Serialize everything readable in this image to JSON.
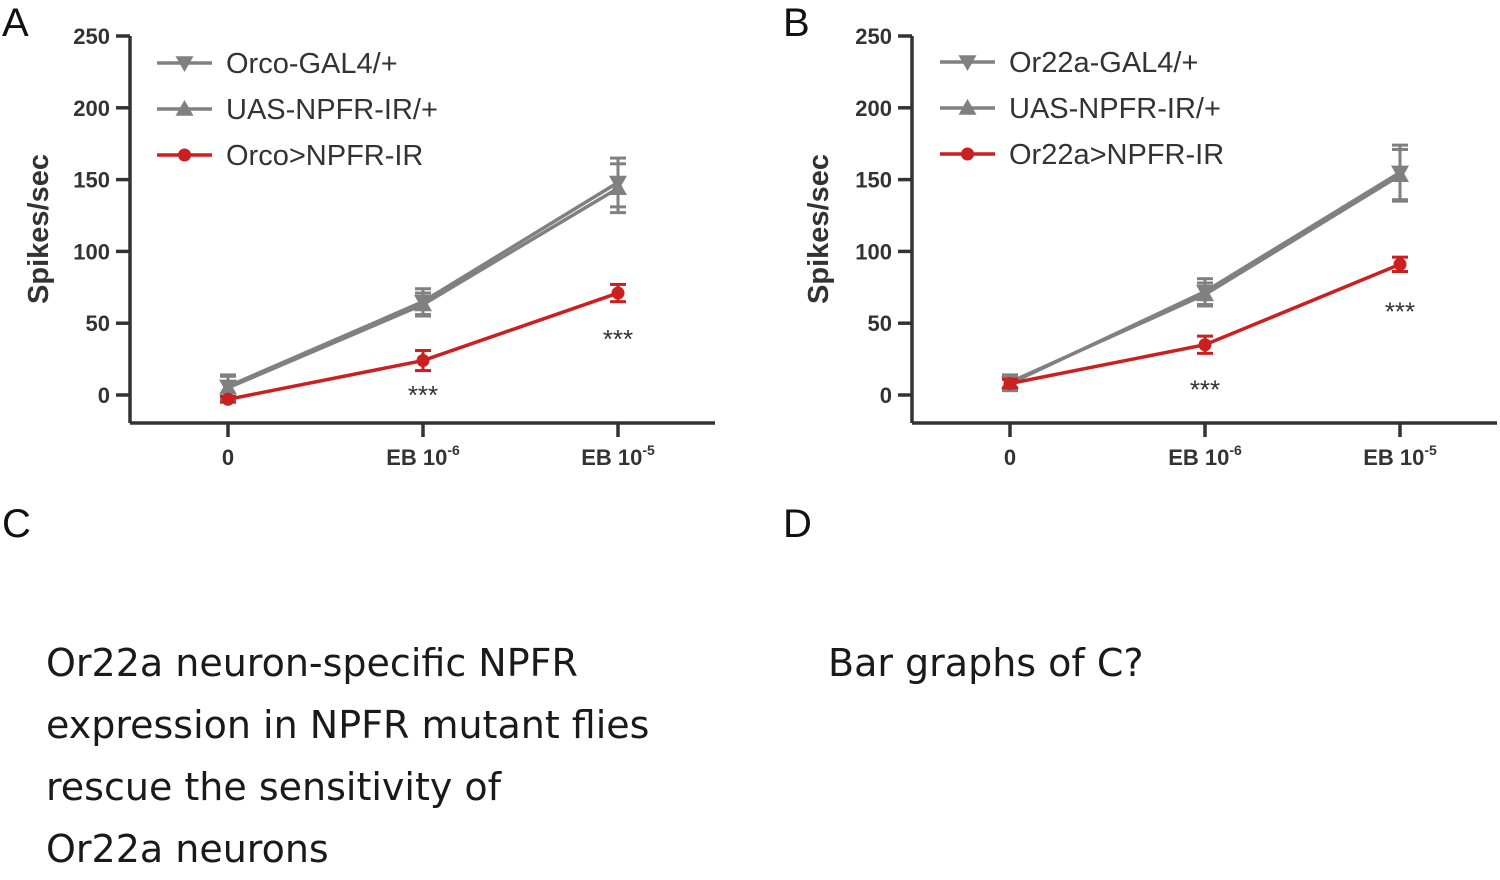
{
  "panels": [
    {
      "letter": "A",
      "ylabel": "Spikes/sec"
    },
    {
      "letter": "B",
      "ylabel": "Spikes/sec"
    },
    {
      "letter": "C"
    },
    {
      "letter": "D"
    }
  ],
  "notes": {
    "c": "Or22a neuron-specific NPFR\nexpression in NPFR mutant flies\nrescue the sensitivity of\nOr22a neurons",
    "d": "Bar graphs of C?"
  },
  "chart_data": [
    {
      "type": "line",
      "ylabel": "Spikes/sec",
      "ylim": [
        -20,
        250
      ],
      "yticks": [
        0,
        50,
        100,
        150,
        200,
        250
      ],
      "categories": [
        "0",
        "EB 10",
        "EB 10"
      ],
      "category_superscripts": [
        "",
        "-6",
        "-5"
      ],
      "legend_position": "top-left",
      "series": [
        {
          "name": "Orco-GAL4/+",
          "marker": "triangle-down",
          "color": "#808080",
          "values": [
            6,
            65,
            148
          ],
          "errors": [
            8,
            9,
            17
          ]
        },
        {
          "name": "UAS-NPFR-IR/+",
          "marker": "triangle-up",
          "color": "#808080",
          "values": [
            5,
            63,
            144
          ],
          "errors": [
            8,
            8,
            17
          ]
        },
        {
          "name": "Orco>NPFR-IR",
          "marker": "circle",
          "color": "#cc1f1f",
          "values": [
            -3,
            24,
            71
          ],
          "errors": [
            2,
            7,
            6
          ]
        }
      ],
      "annotations": [
        {
          "category_index": 1,
          "text": "***",
          "y": 0
        },
        {
          "category_index": 2,
          "text": "***",
          "y": 39
        }
      ]
    },
    {
      "type": "line",
      "ylabel": "Spikes/sec",
      "ylim": [
        -20,
        250
      ],
      "yticks": [
        0,
        50,
        100,
        150,
        200,
        250
      ],
      "categories": [
        "0",
        "EB 10",
        "EB 10"
      ],
      "category_superscripts": [
        "",
        "-6",
        "-5"
      ],
      "legend_position": "top-left",
      "series": [
        {
          "name": "Or22a-GAL4/+",
          "marker": "triangle-down",
          "color": "#808080",
          "values": [
            8,
            72,
            155
          ],
          "errors": [
            5,
            9,
            19
          ]
        },
        {
          "name": "UAS-NPFR-IR/+",
          "marker": "triangle-up",
          "color": "#808080",
          "values": [
            9,
            70,
            153
          ],
          "errors": [
            5,
            8,
            18
          ]
        },
        {
          "name": "Or22a>NPFR-IR",
          "marker": "circle",
          "color": "#cc1f1f",
          "values": [
            8,
            35,
            91
          ],
          "errors": [
            3,
            6,
            5
          ]
        }
      ],
      "annotations": [
        {
          "category_index": 1,
          "text": "***",
          "y": 4
        },
        {
          "category_index": 2,
          "text": "***",
          "y": 58
        }
      ]
    }
  ]
}
